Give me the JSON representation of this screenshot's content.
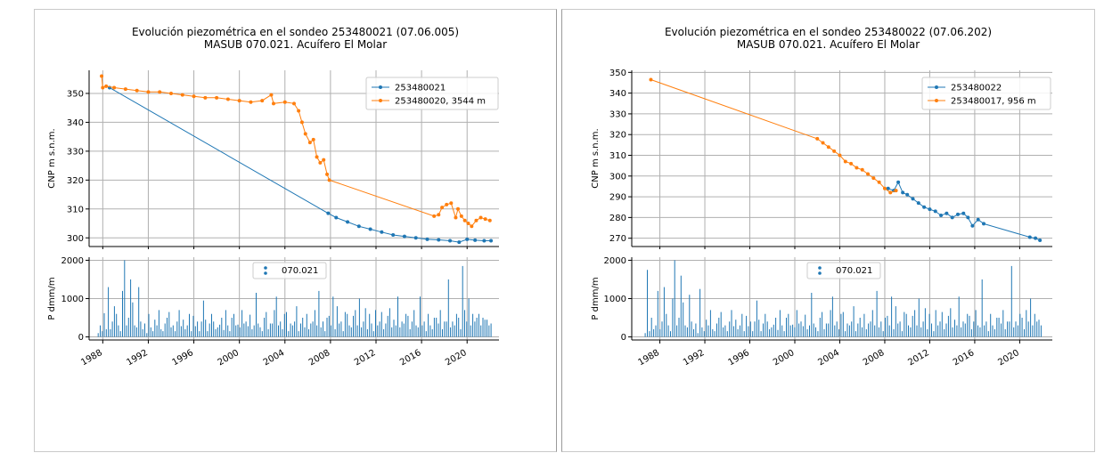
{
  "colors": {
    "series_blue": "#1f77b4",
    "series_orange": "#ff7f0e",
    "grid": "#b0b0b0"
  },
  "chart_data": [
    {
      "type": "line",
      "title": "Evolución piezométrica en el sondeo 253480021 (07.06.005)",
      "subtitle": "MASUB 070.021. Acuífero El Molar",
      "ylabel": "CNP m s.n.m.",
      "ylim": [
        297,
        358
      ],
      "yticks": [
        300,
        310,
        320,
        330,
        340,
        350
      ],
      "xlim": [
        1986.8,
        2022.8
      ],
      "grid": true,
      "legend_position": "top-right",
      "series": [
        {
          "name": "253480021",
          "color": "#1f77b4",
          "x": [
            1988.6,
            2007.8,
            2008.5,
            2009.5,
            2010.5,
            2011.5,
            2012.5,
            2013.5,
            2014.5,
            2015.5,
            2016.5,
            2017.5,
            2018.5,
            2019.3,
            2020.0,
            2020.7,
            2021.5,
            2022.1
          ],
          "y": [
            352,
            308.5,
            307,
            305.5,
            304,
            303,
            302,
            301,
            300.5,
            300,
            299.5,
            299.3,
            299,
            298.5,
            299.5,
            299.2,
            299,
            299
          ]
        },
        {
          "name": "253480020, 3544 m",
          "color": "#ff7f0e",
          "x": [
            1987.9,
            1988.0,
            1988.3,
            1989.0,
            1990.0,
            1991.0,
            1992.0,
            1993.0,
            1994.0,
            1995.0,
            1996.0,
            1997.0,
            1998.0,
            1999.0,
            2000.0,
            2001.0,
            2002.0,
            2002.8,
            2003.0,
            2004.0,
            2004.8,
            2005.2,
            2005.5,
            2005.8,
            2006.2,
            2006.5,
            2006.8,
            2007.1,
            2007.4,
            2007.7,
            2007.9,
            2017.1,
            2017.5,
            2017.8,
            2018.2,
            2018.6,
            2019.0,
            2019.2,
            2019.5,
            2019.8,
            2020.1,
            2020.4,
            2020.8,
            2021.2,
            2021.6,
            2022.0
          ],
          "y": [
            356,
            352,
            352.5,
            352,
            351.5,
            351,
            350.5,
            350.5,
            350,
            349.5,
            349,
            348.5,
            348.5,
            348,
            347.5,
            347,
            347.5,
            349.5,
            346.5,
            347,
            346.5,
            344,
            340,
            336,
            333,
            334,
            328,
            326,
            327,
            322,
            320,
            307.5,
            308,
            310.5,
            311.5,
            312,
            307,
            310,
            307.5,
            306,
            305,
            304,
            306,
            307,
            306.5,
            306
          ]
        }
      ]
    },
    {
      "type": "bar",
      "ylabel": "P dmm/m",
      "ylim": [
        -80,
        2080
      ],
      "yticks": [
        0,
        1000,
        2000
      ],
      "xticks": [
        "1988",
        "1992",
        "1996",
        "2000",
        "2004",
        "2008",
        "2012",
        "2016",
        "2020"
      ],
      "xtick_values": [
        1988,
        1992,
        1996,
        2000,
        2004,
        2008,
        2012,
        2016,
        2020
      ],
      "grid": true,
      "legend_position": "top-center",
      "series": [
        {
          "name": "070.021",
          "color": "#1f77b4"
        }
      ],
      "x_start": 1987.6,
      "x_end": 2022.1,
      "values": [
        100,
        300,
        150,
        620,
        200,
        1300,
        200,
        400,
        800,
        600,
        300,
        150,
        1200,
        2000,
        300,
        500,
        1500,
        900,
        300,
        250,
        1300,
        400,
        200,
        350,
        100,
        600,
        250,
        150,
        450,
        300,
        700,
        200,
        150,
        350,
        500,
        650,
        250,
        300,
        150,
        400,
        700,
        280,
        450,
        200,
        300,
        600,
        150,
        550,
        280,
        400,
        150,
        400,
        950,
        450,
        150,
        350,
        600,
        400,
        200,
        250,
        320,
        500,
        180,
        700,
        300,
        150,
        500,
        600,
        300,
        320,
        250,
        700,
        350,
        400,
        280,
        580,
        200,
        300,
        1150,
        350,
        250,
        150,
        500,
        650,
        200,
        350,
        350,
        700,
        1050,
        300,
        400,
        200,
        600,
        650,
        150,
        350,
        300,
        400,
        800,
        150,
        350,
        500,
        250,
        600,
        200,
        350,
        400,
        700,
        300,
        1200,
        250,
        400,
        150,
        500,
        550,
        300,
        1050,
        200,
        800,
        350,
        400,
        150,
        650,
        600,
        300,
        250,
        550,
        700,
        300,
        1000,
        250,
        400,
        750,
        200,
        600,
        350,
        150,
        700,
        300,
        400,
        650,
        200,
        350,
        550,
        750,
        250,
        450,
        300,
        1050,
        250,
        400,
        350,
        600,
        550,
        200,
        400,
        700,
        300,
        250,
        1050,
        300,
        400,
        150,
        600,
        300,
        200,
        500,
        500,
        350,
        700,
        200,
        400,
        400,
        1500,
        250,
        400,
        300,
        600,
        500,
        200,
        1850,
        700,
        400,
        1000,
        300,
        600,
        400,
        500,
        600,
        300,
        500,
        450,
        450,
        300,
        350
      ]
    },
    {
      "type": "line",
      "title": "Evolución piezométrica en el sondeo 253480022 (07.06.202)",
      "subtitle": "MASUB 070.021. Acuífero El Molar",
      "ylabel": "CNP m s.n.m.",
      "ylim": [
        266,
        351
      ],
      "yticks": [
        270,
        280,
        290,
        300,
        310,
        320,
        330,
        340,
        350
      ],
      "xlim": [
        1985.5,
        2022.9
      ],
      "grid": true,
      "legend_position": "top-right",
      "series": [
        {
          "name": "253480022",
          "color": "#1f77b4",
          "x": [
            2008.3,
            2008.8,
            2009.2,
            2009.6,
            2010.0,
            2010.5,
            2011.0,
            2011.5,
            2012.0,
            2012.5,
            2013.0,
            2013.5,
            2014.0,
            2014.5,
            2015.0,
            2015.4,
            2015.8,
            2016.3,
            2016.8,
            2020.9,
            2021.4,
            2021.8
          ],
          "y": [
            294,
            293,
            297,
            292,
            291,
            289,
            287,
            285,
            284,
            283,
            281,
            282,
            280,
            281.5,
            282,
            280,
            276,
            279,
            277,
            270.5,
            270,
            269
          ]
        },
        {
          "name": "253480017, 956 m",
          "color": "#ff7f0e",
          "x": [
            1987.2,
            2002.0,
            2002.5,
            2003.0,
            2003.5,
            2004.0,
            2004.5,
            2005.0,
            2005.5,
            2006.0,
            2006.5,
            2007.0,
            2007.5,
            2008.0,
            2008.5,
            2009.0
          ],
          "y": [
            346.5,
            318,
            316,
            314,
            312,
            310,
            307,
            306,
            304,
            303,
            301,
            299,
            297,
            294,
            292,
            293
          ]
        }
      ]
    },
    {
      "type": "bar",
      "ylabel": "P dmm/m",
      "ylim": [
        -80,
        2080
      ],
      "yticks": [
        0,
        1000,
        2000
      ],
      "xticks": [
        "1988",
        "1992",
        "1996",
        "2000",
        "2004",
        "2008",
        "2012",
        "2016",
        "2020"
      ],
      "xtick_values": [
        1988,
        1992,
        1996,
        2000,
        2004,
        2008,
        2012,
        2016,
        2020
      ],
      "grid": true,
      "legend_position": "top-center",
      "series": [
        {
          "name": "070.021",
          "color": "#1f77b4"
        }
      ],
      "x_start": 1986.7,
      "x_end": 2021.9,
      "values": [
        100,
        1750,
        150,
        500,
        200,
        300,
        1200,
        200,
        400,
        1300,
        600,
        300,
        150,
        1000,
        2000,
        300,
        500,
        1600,
        900,
        300,
        250,
        1100,
        400,
        200,
        350,
        100,
        1250,
        250,
        150,
        450,
        300,
        700,
        200,
        150,
        350,
        500,
        650,
        250,
        300,
        150,
        400,
        700,
        280,
        450,
        200,
        300,
        600,
        150,
        550,
        280,
        400,
        150,
        400,
        950,
        450,
        150,
        350,
        600,
        400,
        200,
        250,
        320,
        500,
        180,
        700,
        300,
        150,
        500,
        600,
        300,
        320,
        250,
        700,
        350,
        400,
        280,
        580,
        200,
        300,
        1150,
        350,
        250,
        150,
        500,
        650,
        200,
        350,
        350,
        700,
        1050,
        300,
        400,
        200,
        600,
        650,
        150,
        350,
        300,
        400,
        800,
        150,
        350,
        500,
        250,
        600,
        200,
        350,
        400,
        700,
        300,
        1200,
        250,
        400,
        150,
        500,
        550,
        300,
        1050,
        200,
        800,
        350,
        400,
        150,
        650,
        600,
        300,
        250,
        550,
        700,
        300,
        1000,
        250,
        400,
        750,
        200,
        600,
        350,
        150,
        700,
        300,
        400,
        650,
        200,
        350,
        550,
        750,
        250,
        450,
        300,
        1050,
        250,
        400,
        350,
        600,
        550,
        200,
        400,
        700,
        300,
        250,
        1500,
        300,
        400,
        150,
        600,
        300,
        200,
        500,
        500,
        350,
        700,
        200,
        400,
        400,
        1850,
        250,
        400,
        300,
        600,
        500,
        200,
        700,
        400,
        1000,
        300,
        600,
        400,
        450,
        300
      ]
    }
  ]
}
